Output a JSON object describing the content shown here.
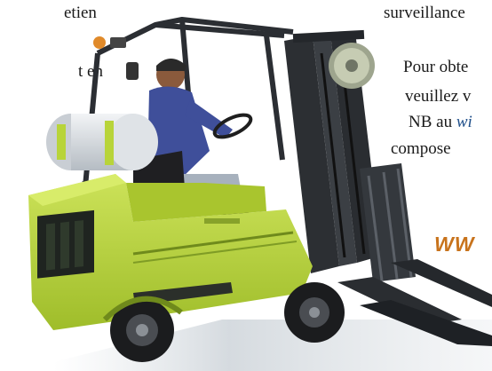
{
  "left_text": {
    "line1": "etien",
    "line2": "t en",
    "line3": "en",
    "line4": "u"
  },
  "right_text": {
    "line1": "surveillance",
    "line2": "Pour obte",
    "line3": "veuillez v",
    "line4_prefix": "NB au ",
    "line4_link": "wi",
    "line5": "compose",
    "www": "WW"
  },
  "colors": {
    "forklift_body": "#b8d43a",
    "forklift_shadow": "#6f8a1c",
    "mast": "#2c2f33",
    "link": "#1f4f8a",
    "www": "#c8731c"
  }
}
